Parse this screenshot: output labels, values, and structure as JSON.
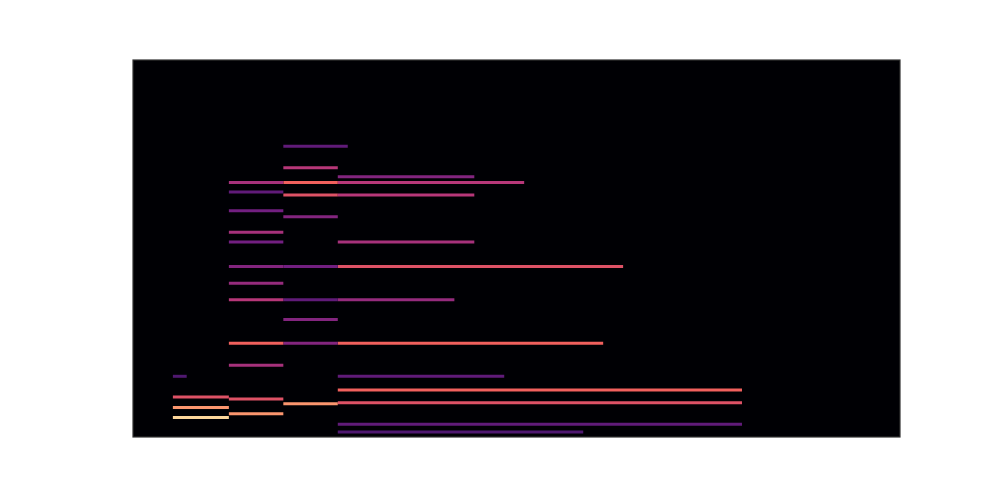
{
  "chart_data": {
    "type": "spectrogram",
    "xlim": [
      0,
      100
    ],
    "ylim": [
      0,
      100
    ],
    "zlim": [
      0,
      1
    ],
    "tick_labels": false,
    "grid": false,
    "segments": [
      {
        "start": 5.2,
        "end": 12.5,
        "freq": 5.2,
        "level": 0.95
      },
      {
        "start": 5.2,
        "end": 12.5,
        "freq": 7.8,
        "level": 0.85
      },
      {
        "start": 5.2,
        "end": 12.5,
        "freq": 10.6,
        "level": 0.7
      },
      {
        "start": 5.2,
        "end": 7.0,
        "freq": 16.1,
        "level": 0.3
      },
      {
        "start": 12.5,
        "end": 19.6,
        "freq": 6.2,
        "level": 0.85
      },
      {
        "start": 12.5,
        "end": 19.6,
        "freq": 10.1,
        "level": 0.7
      },
      {
        "start": 12.5,
        "end": 19.6,
        "freq": 19.0,
        "level": 0.55
      },
      {
        "start": 12.5,
        "end": 19.6,
        "freq": 24.9,
        "level": 0.75
      },
      {
        "start": 12.5,
        "end": 19.6,
        "freq": 36.4,
        "level": 0.6
      },
      {
        "start": 12.5,
        "end": 19.6,
        "freq": 40.8,
        "level": 0.5
      },
      {
        "start": 12.5,
        "end": 19.6,
        "freq": 45.2,
        "level": 0.45
      },
      {
        "start": 12.5,
        "end": 19.6,
        "freq": 51.7,
        "level": 0.4
      },
      {
        "start": 12.5,
        "end": 19.6,
        "freq": 54.3,
        "level": 0.55
      },
      {
        "start": 12.5,
        "end": 19.6,
        "freq": 60.0,
        "level": 0.4
      },
      {
        "start": 12.5,
        "end": 19.6,
        "freq": 65.0,
        "level": 0.35
      },
      {
        "start": 12.5,
        "end": 19.6,
        "freq": 67.5,
        "level": 0.55
      },
      {
        "start": 19.6,
        "end": 26.7,
        "freq": 8.8,
        "level": 0.85
      },
      {
        "start": 19.6,
        "end": 26.7,
        "freq": 24.9,
        "level": 0.45
      },
      {
        "start": 19.6,
        "end": 26.7,
        "freq": 31.2,
        "level": 0.45
      },
      {
        "start": 19.6,
        "end": 26.7,
        "freq": 36.4,
        "level": 0.35
      },
      {
        "start": 19.6,
        "end": 26.7,
        "freq": 45.2,
        "level": 0.4
      },
      {
        "start": 19.6,
        "end": 26.7,
        "freq": 58.4,
        "level": 0.45
      },
      {
        "start": 19.6,
        "end": 26.7,
        "freq": 64.2,
        "level": 0.7
      },
      {
        "start": 19.6,
        "end": 26.7,
        "freq": 67.5,
        "level": 0.75
      },
      {
        "start": 19.6,
        "end": 26.7,
        "freq": 71.4,
        "level": 0.6
      },
      {
        "start": 19.6,
        "end": 28.0,
        "freq": 77.1,
        "level": 0.35
      },
      {
        "start": 26.7,
        "end": 58.7,
        "freq": 1.3,
        "level": 0.3
      },
      {
        "start": 26.7,
        "end": 79.4,
        "freq": 3.4,
        "level": 0.35
      },
      {
        "start": 26.7,
        "end": 79.4,
        "freq": 9.1,
        "level": 0.7
      },
      {
        "start": 26.7,
        "end": 79.4,
        "freq": 12.5,
        "level": 0.75
      },
      {
        "start": 26.7,
        "end": 48.4,
        "freq": 16.1,
        "level": 0.35
      },
      {
        "start": 26.7,
        "end": 61.3,
        "freq": 24.9,
        "level": 0.75
      },
      {
        "start": 26.7,
        "end": 41.9,
        "freq": 36.4,
        "level": 0.5
      },
      {
        "start": 26.7,
        "end": 63.9,
        "freq": 45.2,
        "level": 0.7
      },
      {
        "start": 26.7,
        "end": 44.5,
        "freq": 51.7,
        "level": 0.55
      },
      {
        "start": 26.7,
        "end": 44.5,
        "freq": 64.2,
        "level": 0.6
      },
      {
        "start": 26.7,
        "end": 51.0,
        "freq": 67.5,
        "level": 0.6
      },
      {
        "start": 26.7,
        "end": 44.5,
        "freq": 69.0,
        "level": 0.45
      }
    ]
  }
}
